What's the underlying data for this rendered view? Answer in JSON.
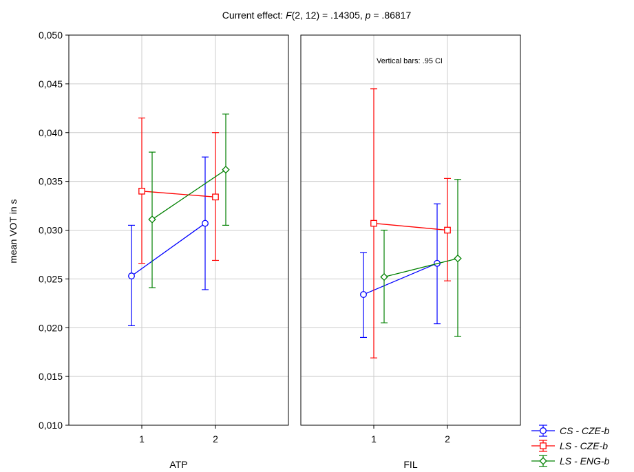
{
  "chart_data": {
    "type": "line",
    "title_prefix": "Current effect: ",
    "title_f": "F",
    "title_mid": "(2, 12) = .14305, ",
    "title_p": "p",
    "title_suffix": " = .86817",
    "annotation": "Vertical bars: .95 CI",
    "ylabel": "mean VOT in s",
    "ylim": [
      0.01,
      0.05
    ],
    "yticks": [
      "0,010",
      "0,015",
      "0,020",
      "0,025",
      "0,030",
      "0,035",
      "0,040",
      "0,045",
      "0,050"
    ],
    "grid": true,
    "legend_position": "bottom-right",
    "panels": [
      {
        "label": "ATP",
        "categories": [
          "1",
          "2"
        ],
        "series": [
          {
            "name": "CS - CZE-b",
            "values": [
              0.0253,
              0.0307
            ],
            "ci_low": [
              0.0202,
              0.0239
            ],
            "ci_high": [
              0.0305,
              0.0375
            ]
          },
          {
            "name": "LS - CZE-b",
            "values": [
              0.034,
              0.0334
            ],
            "ci_low": [
              0.0266,
              0.0269
            ],
            "ci_high": [
              0.0415,
              0.04
            ]
          },
          {
            "name": "LS - ENG-b",
            "values": [
              0.0311,
              0.0362
            ],
            "ci_low": [
              0.0241,
              0.0305
            ],
            "ci_high": [
              0.038,
              0.0419
            ]
          }
        ]
      },
      {
        "label": "FIL",
        "categories": [
          "1",
          "2"
        ],
        "series": [
          {
            "name": "CS - CZE-b",
            "values": [
              0.0234,
              0.0266
            ],
            "ci_low": [
              0.019,
              0.0204
            ],
            "ci_high": [
              0.0277,
              0.0327
            ]
          },
          {
            "name": "LS - CZE-b",
            "values": [
              0.0307,
              0.03
            ],
            "ci_low": [
              0.0169,
              0.0248
            ],
            "ci_high": [
              0.0445,
              0.0353
            ]
          },
          {
            "name": "LS - ENG-b",
            "values": [
              0.0252,
              0.0271
            ],
            "ci_low": [
              0.0205,
              0.0191
            ],
            "ci_high": [
              0.03,
              0.0352
            ]
          }
        ]
      }
    ],
    "legend": [
      {
        "name": "CS - CZE-b",
        "color": "#0000ff",
        "marker": "circle"
      },
      {
        "name": "LS - CZE-b",
        "color": "#ff0000",
        "marker": "square"
      },
      {
        "name": "LS - ENG-b",
        "color": "#008000",
        "marker": "diamond"
      }
    ]
  }
}
